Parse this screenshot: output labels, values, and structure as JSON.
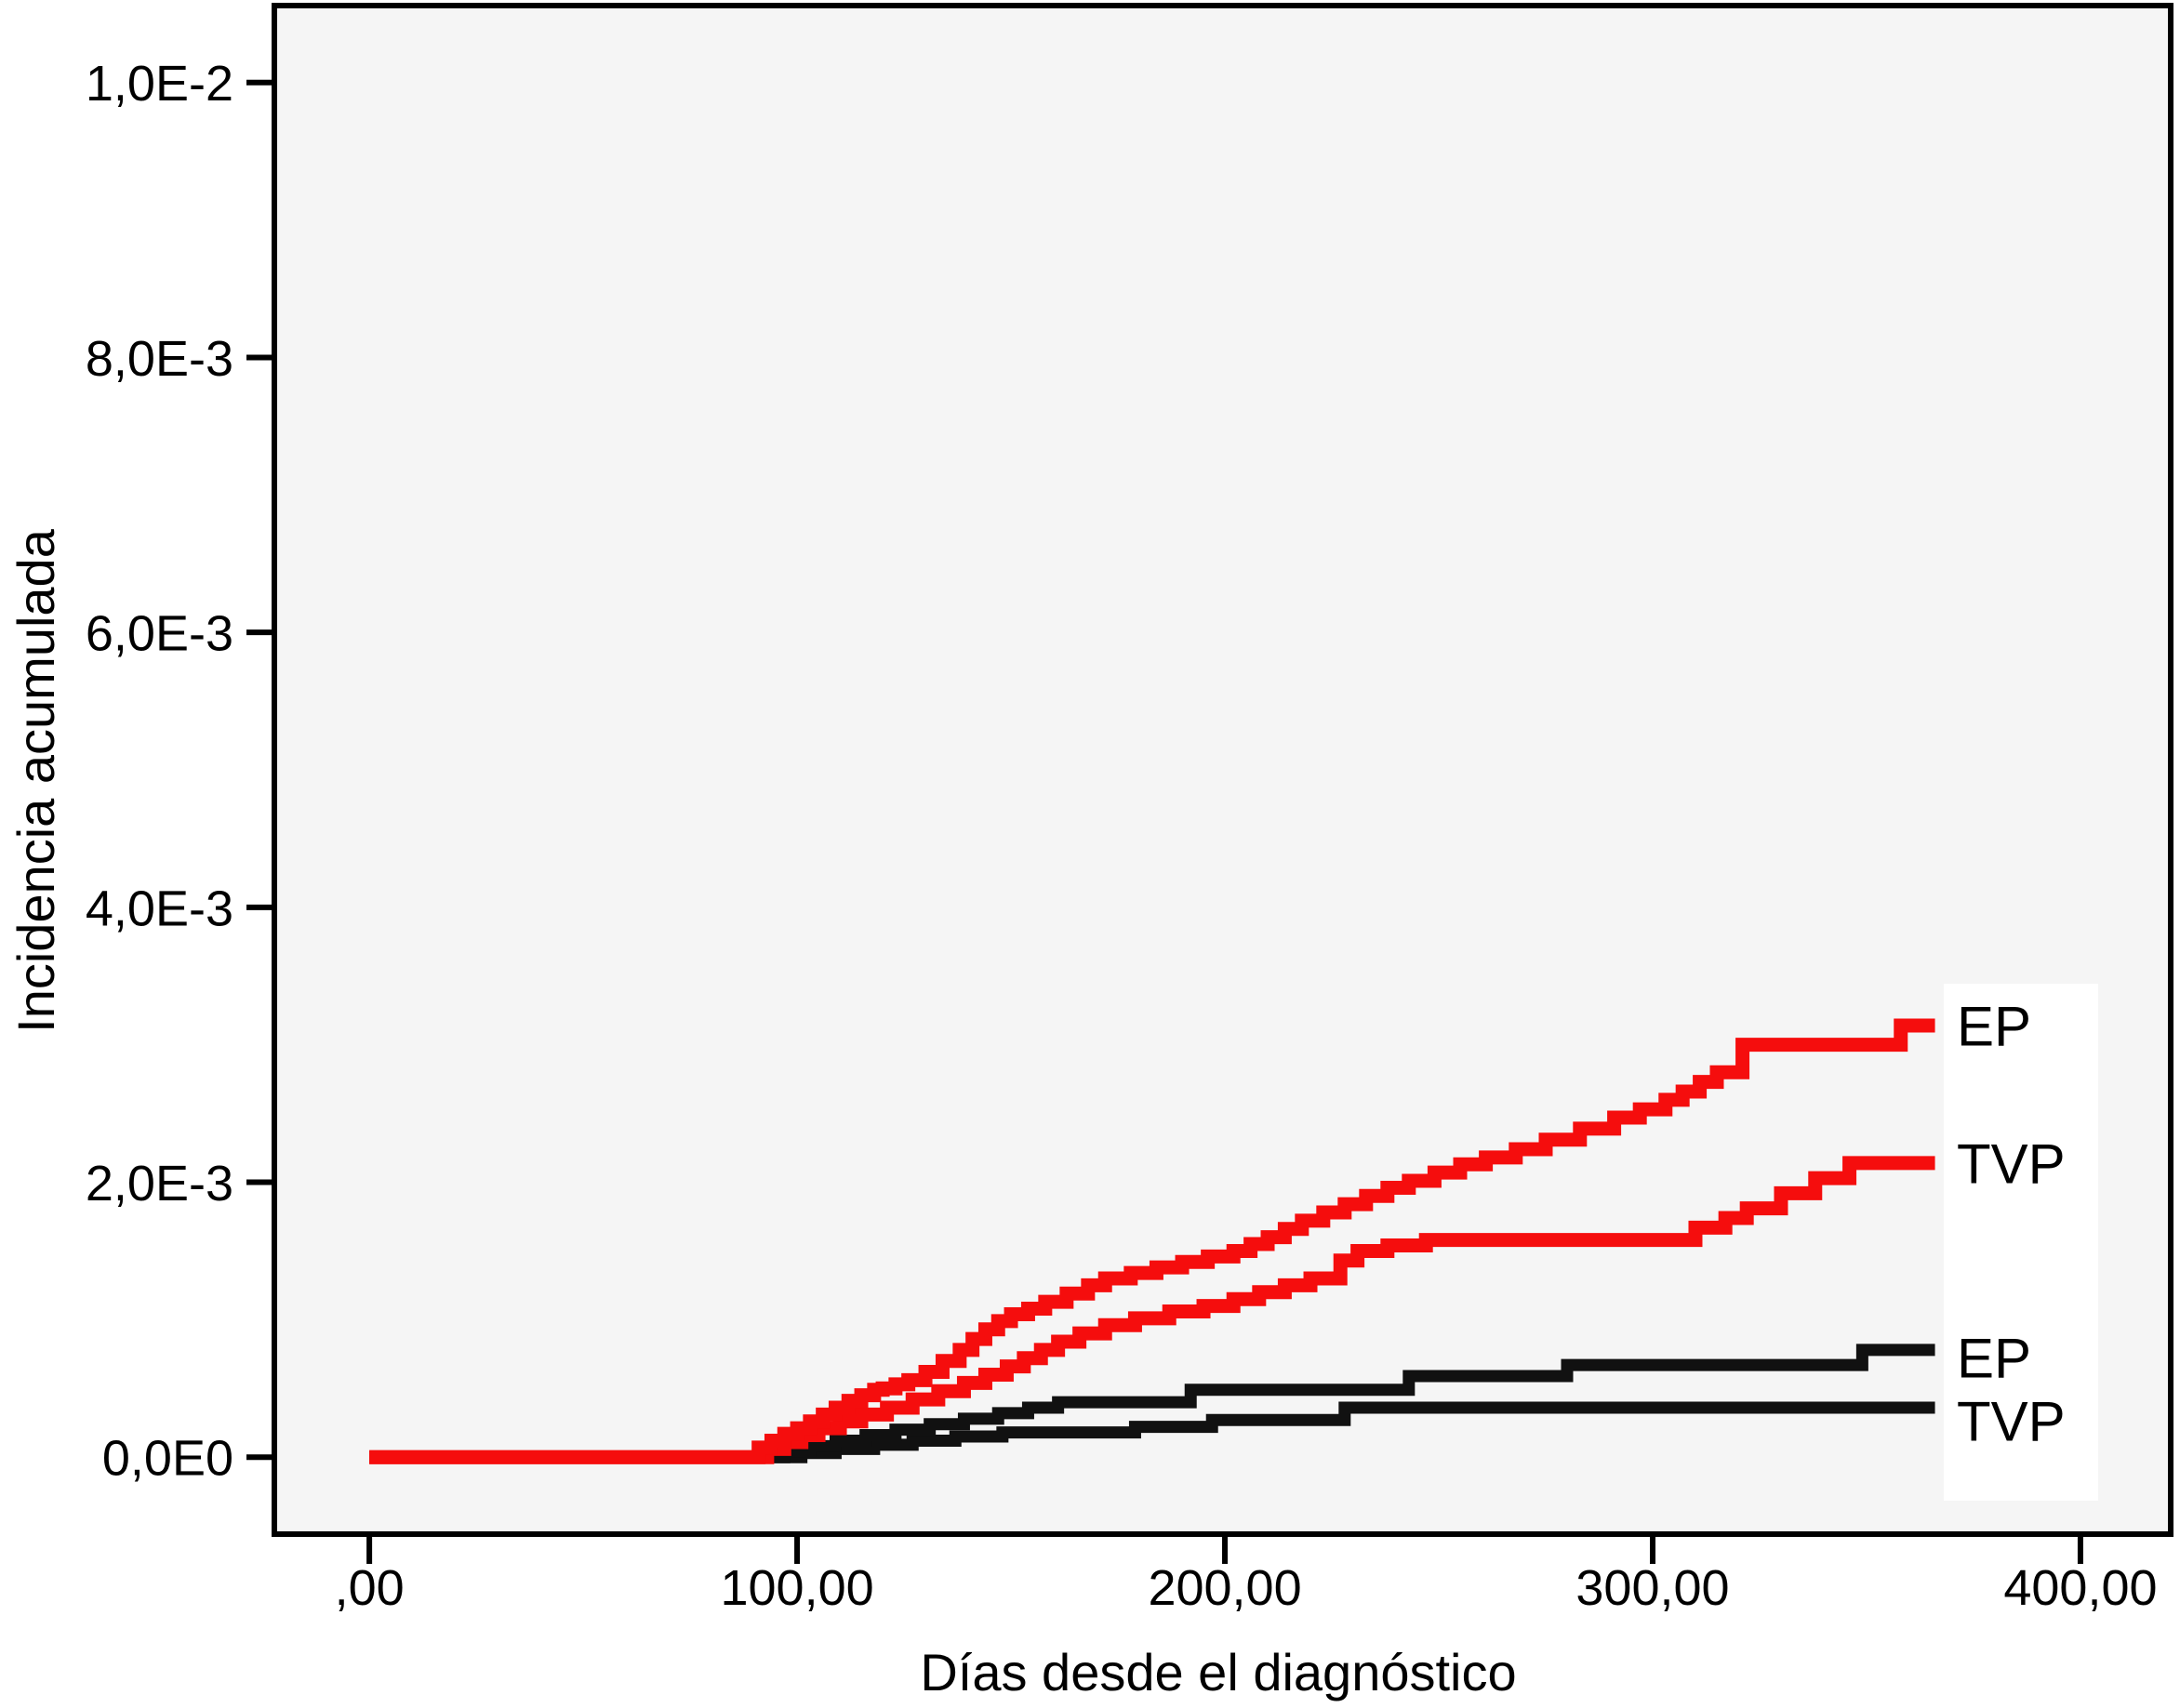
{
  "chart_data": {
    "type": "line",
    "style": "step",
    "title": "",
    "xlabel": "Días desde el diagnóstico",
    "ylabel": "Incidencia acumulada",
    "grid": false,
    "legend_position": "right-inline-labels",
    "plot_bg": "#f5f5f5",
    "label_box_bg": "#ffffff",
    "border_color": "#000000",
    "xlim": [
      -22.2,
      421.1
    ],
    "ylim": [
      -0.00056,
      0.01056
    ],
    "x_ticks": {
      "values": [
        0,
        100,
        200,
        300,
        400
      ],
      "labels": [
        ",00",
        "100,00",
        "200,00",
        "300,00",
        "400,00"
      ]
    },
    "y_ticks": {
      "values": [
        0,
        0.002,
        0.004,
        0.006,
        0.008,
        0.01
      ],
      "labels": [
        "0,0E0",
        "2,0E-3",
        "4,0E-3",
        "6,0E-3",
        "8,0E-3",
        "1,0E-2"
      ]
    },
    "series": [
      {
        "name": "EP",
        "color": "#f50d0d",
        "label_dy": 0,
        "points": [
          [
            0,
            0
          ],
          [
            88,
            0
          ],
          [
            91,
            7e-05
          ],
          [
            94,
            0.00012
          ],
          [
            97,
            0.00017
          ],
          [
            100,
            0.00021
          ],
          [
            103,
            0.00026
          ],
          [
            106,
            0.00031
          ],
          [
            109,
            0.00036
          ],
          [
            112,
            0.00041
          ],
          [
            115,
            0.00045
          ],
          [
            118,
            0.00049
          ],
          [
            120,
            0.0005
          ],
          [
            123,
            0.00053
          ],
          [
            126,
            0.00056
          ],
          [
            130,
            0.00062
          ],
          [
            134,
            0.0007
          ],
          [
            138,
            0.00078
          ],
          [
            141,
            0.00086
          ],
          [
            144,
            0.00093
          ],
          [
            147,
            0.00099
          ],
          [
            150,
            0.00104
          ],
          [
            154,
            0.00108
          ],
          [
            158,
            0.00113
          ],
          [
            163,
            0.00119
          ],
          [
            168,
            0.00125
          ],
          [
            172,
            0.0013
          ],
          [
            178,
            0.00134
          ],
          [
            184,
            0.00138
          ],
          [
            190,
            0.00142
          ],
          [
            196,
            0.00146
          ],
          [
            202,
            0.0015
          ],
          [
            206,
            0.00155
          ],
          [
            210,
            0.0016
          ],
          [
            214,
            0.00166
          ],
          [
            218,
            0.00172
          ],
          [
            223,
            0.00178
          ],
          [
            228,
            0.00184
          ],
          [
            233,
            0.0019
          ],
          [
            238,
            0.00196
          ],
          [
            243,
            0.00201
          ],
          [
            249,
            0.00207
          ],
          [
            255,
            0.00213
          ],
          [
            261,
            0.00218
          ],
          [
            268,
            0.00224
          ],
          [
            275,
            0.00231
          ],
          [
            283,
            0.00239
          ],
          [
            291,
            0.00247
          ],
          [
            297,
            0.00253
          ],
          [
            303,
            0.0026
          ],
          [
            307,
            0.00266
          ],
          [
            311,
            0.00273
          ],
          [
            315,
            0.0028
          ],
          [
            321,
            0.003
          ],
          [
            355,
            0.003
          ],
          [
            358,
            0.00314
          ],
          [
            366,
            0.00314
          ]
        ]
      },
      {
        "name": "TVP",
        "color": "#f50d0d",
        "label_dy": 0,
        "points": [
          [
            0,
            0
          ],
          [
            89,
            0
          ],
          [
            93,
            6e-05
          ],
          [
            97,
            0.00011
          ],
          [
            101,
            0.00016
          ],
          [
            105,
            0.00021
          ],
          [
            110,
            0.00026
          ],
          [
            115,
            0.00031
          ],
          [
            121,
            0.00036
          ],
          [
            127,
            0.00042
          ],
          [
            133,
            0.00048
          ],
          [
            139,
            0.00054
          ],
          [
            144,
            0.0006
          ],
          [
            149,
            0.00066
          ],
          [
            153,
            0.00072
          ],
          [
            157,
            0.00078
          ],
          [
            161,
            0.00084
          ],
          [
            166,
            0.0009
          ],
          [
            172,
            0.00096
          ],
          [
            179,
            0.00101
          ],
          [
            187,
            0.00106
          ],
          [
            195,
            0.0011
          ],
          [
            202,
            0.00115
          ],
          [
            208,
            0.0012
          ],
          [
            214,
            0.00125
          ],
          [
            220,
            0.0013
          ],
          [
            227,
            0.00143
          ],
          [
            231,
            0.0015
          ],
          [
            238,
            0.00154
          ],
          [
            247,
            0.00158
          ],
          [
            306,
            0.00158
          ],
          [
            310,
            0.00167
          ],
          [
            317,
            0.00174
          ],
          [
            322,
            0.00181
          ],
          [
            330,
            0.00192
          ],
          [
            338,
            0.00203
          ],
          [
            346,
            0.00214
          ],
          [
            366,
            0.00214
          ]
        ]
      },
      {
        "name": "EP",
        "color": "#111111",
        "label_dy": 8,
        "points": [
          [
            0,
            0
          ],
          [
            92,
            0
          ],
          [
            97,
            4e-05
          ],
          [
            103,
            8e-05
          ],
          [
            109,
            0.00012
          ],
          [
            116,
            0.00016
          ],
          [
            123,
            0.0002
          ],
          [
            131,
            0.00024
          ],
          [
            139,
            0.00028
          ],
          [
            147,
            0.00032
          ],
          [
            154,
            0.00036
          ],
          [
            161,
            0.0004
          ],
          [
            192,
            0.00049
          ],
          [
            243,
            0.00059
          ],
          [
            280,
            0.00067
          ],
          [
            349,
            0.00078
          ],
          [
            366,
            0.00078
          ]
        ]
      },
      {
        "name": "TVP",
        "color": "#111111",
        "label_dy": 14,
        "points": [
          [
            0,
            0
          ],
          [
            94,
            0
          ],
          [
            101,
            3e-05
          ],
          [
            109,
            6e-05
          ],
          [
            118,
            9e-05
          ],
          [
            127,
            0.00012
          ],
          [
            137,
            0.00015
          ],
          [
            148,
            0.00018
          ],
          [
            179,
            0.00022
          ],
          [
            197,
            0.00027
          ],
          [
            228,
            0.00036
          ],
          [
            366,
            0.00036
          ]
        ]
      }
    ]
  }
}
